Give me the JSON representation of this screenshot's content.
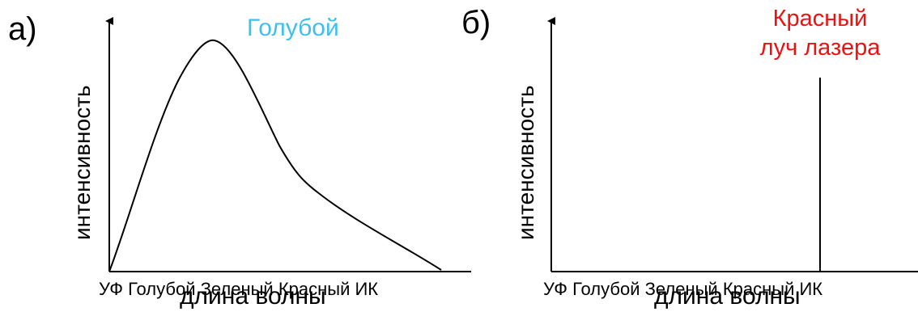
{
  "panels": [
    {
      "label": "а)",
      "ylabel": "интенсивность",
      "xticks": "УФ Голубой Зеленый Красный ИК",
      "xlabel": "длина волны",
      "peak_label": "Голубой",
      "peak_color": "#3fbfef"
    },
    {
      "label": "б)",
      "ylabel": "интенсивность",
      "xticks": "УФ Голубой Зеленый Красный ИК",
      "xlabel": "длина волны",
      "laser_label_line1": "Красный",
      "laser_label_line2": "луч лазера",
      "laser_color": "#ee1111"
    }
  ],
  "colors": {
    "axes": "#000000",
    "curve": "#000000"
  }
}
